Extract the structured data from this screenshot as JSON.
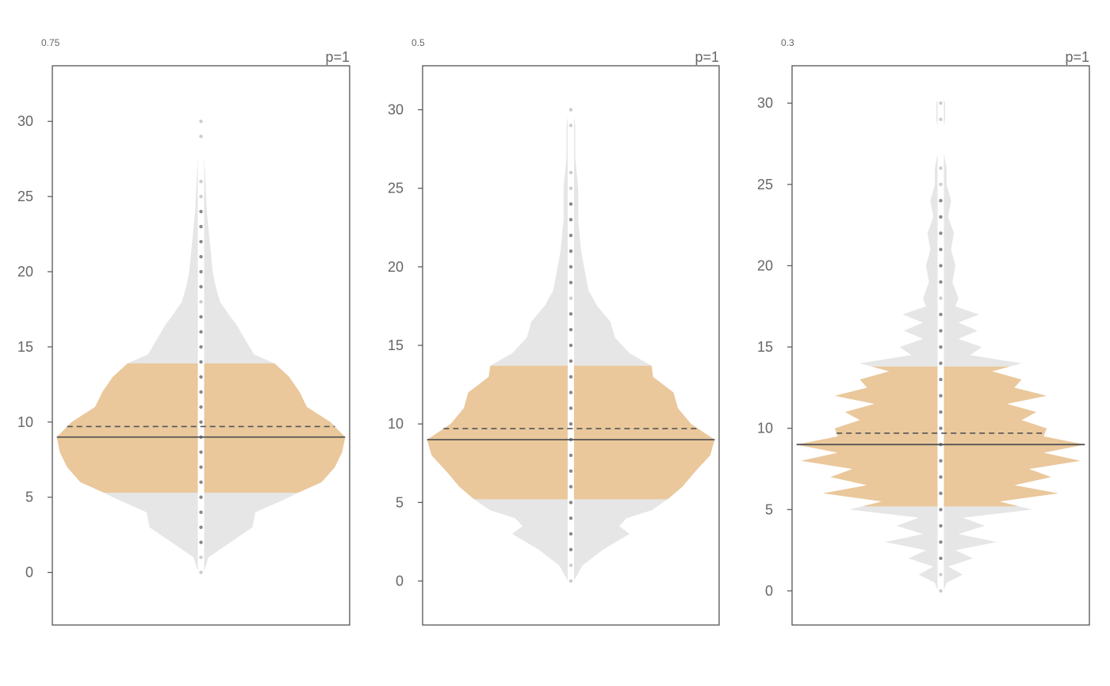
{
  "chart_data": [
    {
      "type": "violin",
      "bandwidth": "0.75",
      "pvalue": "p=1",
      "ylim": [
        -3.5,
        33.7
      ],
      "yticks": [
        0,
        5,
        10,
        15,
        20,
        25,
        30
      ],
      "ytick_labels": [
        "0",
        "5",
        "10",
        "15",
        "20",
        "25",
        "30"
      ],
      "median": 9,
      "mean": 9.7,
      "iqr_band": [
        5.3,
        13.9
      ],
      "dots": [
        0,
        1,
        2,
        3,
        4,
        5,
        6,
        7,
        8,
        9,
        10,
        11,
        12,
        13,
        14,
        15,
        16,
        17,
        18,
        19,
        20,
        21,
        22,
        23,
        24,
        25,
        26,
        29,
        30
      ],
      "density": [
        [
          -1.7,
          0
        ],
        [
          -1,
          0.01
        ],
        [
          0,
          0.02
        ],
        [
          1,
          0.05
        ],
        [
          2,
          0.2
        ],
        [
          3,
          0.35
        ],
        [
          4,
          0.37
        ],
        [
          5,
          0.6
        ],
        [
          5.3,
          0.66
        ],
        [
          6,
          0.82
        ],
        [
          7,
          0.91
        ],
        [
          8,
          0.96
        ],
        [
          9,
          0.98
        ],
        [
          10,
          0.88
        ],
        [
          11,
          0.72
        ],
        [
          12,
          0.67
        ],
        [
          13,
          0.6
        ],
        [
          13.9,
          0.5
        ],
        [
          14.5,
          0.36
        ],
        [
          15.5,
          0.3
        ],
        [
          16.5,
          0.24
        ],
        [
          17,
          0.2
        ],
        [
          18,
          0.13
        ],
        [
          19,
          0.1
        ],
        [
          20,
          0.08
        ],
        [
          22,
          0.06
        ],
        [
          24,
          0.04
        ],
        [
          26,
          0.03
        ],
        [
          28,
          0.02
        ],
        [
          30,
          0.02
        ],
        [
          31.5,
          0
        ]
      ]
    },
    {
      "type": "violin",
      "bandwidth": "0.5",
      "pvalue": "p=1",
      "ylim": [
        -2.8,
        32.8
      ],
      "yticks": [
        0,
        5,
        10,
        15,
        20,
        25,
        30
      ],
      "ytick_labels": [
        "0",
        "5",
        "10",
        "15",
        "20",
        "25",
        "30"
      ],
      "median": 9,
      "mean": 9.7,
      "iqr_band": [
        5.2,
        13.7
      ],
      "dots": [
        0,
        1,
        2,
        3,
        4,
        5,
        6,
        7,
        8,
        9,
        10,
        11,
        12,
        13,
        14,
        15,
        16,
        17,
        18,
        19,
        20,
        21,
        22,
        23,
        24,
        25,
        26,
        29,
        30
      ],
      "density": [
        [
          -1,
          0
        ],
        [
          0,
          0.02
        ],
        [
          1,
          0.08
        ],
        [
          2,
          0.22
        ],
        [
          3,
          0.4
        ],
        [
          3.5,
          0.33
        ],
        [
          4,
          0.38
        ],
        [
          4.5,
          0.55
        ],
        [
          5.2,
          0.66
        ],
        [
          6,
          0.76
        ],
        [
          7,
          0.85
        ],
        [
          8,
          0.95
        ],
        [
          9,
          0.98
        ],
        [
          10,
          0.82
        ],
        [
          11,
          0.73
        ],
        [
          12,
          0.7
        ],
        [
          13,
          0.56
        ],
        [
          13.7,
          0.55
        ],
        [
          14.5,
          0.4
        ],
        [
          15.5,
          0.3
        ],
        [
          16.5,
          0.27
        ],
        [
          17.5,
          0.18
        ],
        [
          18.5,
          0.12
        ],
        [
          19.5,
          0.1
        ],
        [
          21,
          0.07
        ],
        [
          23,
          0.05
        ],
        [
          25,
          0.05
        ],
        [
          27,
          0.03
        ],
        [
          29,
          0.03
        ],
        [
          31,
          0
        ]
      ]
    },
    {
      "type": "violin",
      "bandwidth": "0.3",
      "pvalue": "p=1",
      "ylim": [
        -2.1,
        32.3
      ],
      "yticks": [
        0,
        5,
        10,
        15,
        20,
        25,
        30
      ],
      "ytick_labels": [
        "0",
        "5",
        "10",
        "15",
        "20",
        "25",
        "30"
      ],
      "median": 9,
      "mean": 9.7,
      "iqr_band": [
        5.2,
        13.8
      ],
      "dots": [
        0,
        1,
        2,
        3,
        4,
        5,
        6,
        7,
        8,
        9,
        10,
        11,
        12,
        13,
        14,
        15,
        16,
        17,
        18,
        19,
        20,
        21,
        22,
        23,
        24,
        25,
        26,
        29,
        30
      ],
      "density": [
        [
          -0.6,
          0
        ],
        [
          0,
          0.02
        ],
        [
          0.5,
          0.04
        ],
        [
          1,
          0.15
        ],
        [
          1.5,
          0.05
        ],
        [
          2,
          0.22
        ],
        [
          2.5,
          0.1
        ],
        [
          3,
          0.38
        ],
        [
          3.5,
          0.12
        ],
        [
          4,
          0.3
        ],
        [
          4.5,
          0.15
        ],
        [
          5,
          0.62
        ],
        [
          5.5,
          0.4
        ],
        [
          6,
          0.8
        ],
        [
          6.5,
          0.5
        ],
        [
          7,
          0.75
        ],
        [
          7.5,
          0.6
        ],
        [
          8,
          0.95
        ],
        [
          8.5,
          0.7
        ],
        [
          9,
          0.98
        ],
        [
          9.5,
          0.7
        ],
        [
          10,
          0.72
        ],
        [
          10.5,
          0.55
        ],
        [
          11,
          0.65
        ],
        [
          11.5,
          0.45
        ],
        [
          12,
          0.72
        ],
        [
          12.5,
          0.5
        ],
        [
          13,
          0.55
        ],
        [
          13.5,
          0.35
        ],
        [
          14,
          0.55
        ],
        [
          14.5,
          0.2
        ],
        [
          15,
          0.28
        ],
        [
          15.5,
          0.12
        ],
        [
          16,
          0.25
        ],
        [
          16.5,
          0.12
        ],
        [
          17,
          0.26
        ],
        [
          17.5,
          0.1
        ],
        [
          18,
          0.12
        ],
        [
          19,
          0.08
        ],
        [
          20,
          0.1
        ],
        [
          21,
          0.07
        ],
        [
          22,
          0.09
        ],
        [
          23,
          0.05
        ],
        [
          24,
          0.07
        ],
        [
          25,
          0.04
        ],
        [
          26,
          0.04
        ],
        [
          27,
          0.02
        ],
        [
          28,
          0.01
        ],
        [
          29,
          0.03
        ],
        [
          30,
          0.03
        ],
        [
          30.8,
          0
        ]
      ]
    }
  ]
}
